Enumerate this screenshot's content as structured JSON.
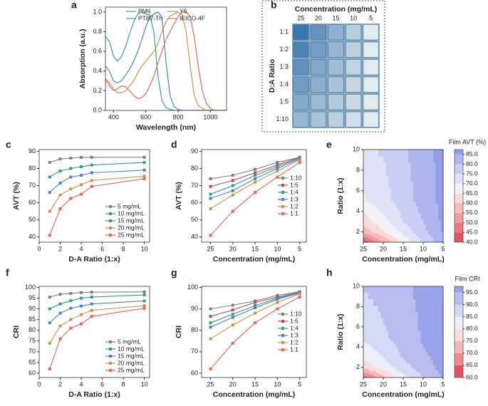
{
  "chart_data": [
    {
      "type": "line",
      "panel_label": "a",
      "xlabel": "Wavelength (nm)",
      "ylabel": "Absorption (a.u.)",
      "x": [
        350,
        375,
        400,
        425,
        450,
        475,
        500,
        525,
        550,
        575,
        600,
        625,
        650,
        675,
        700,
        725,
        750,
        775,
        800,
        825,
        850,
        875,
        900,
        925,
        950,
        975,
        1000,
        1025,
        1050,
        1075,
        1100
      ],
      "series": [
        {
          "name": "PM6",
          "color": "#3aa58f",
          "values": [
            0.75,
            0.7,
            0.55,
            0.5,
            0.55,
            0.65,
            0.78,
            0.9,
            0.98,
            1.0,
            0.98,
            0.97,
            0.8,
            0.35,
            0.1,
            0.03,
            0.01,
            0,
            0,
            0,
            0,
            0,
            0,
            0,
            0,
            0,
            0,
            0,
            0,
            0,
            0
          ]
        },
        {
          "name": "Y6",
          "color": "#c49a4a",
          "values": [
            0.32,
            0.28,
            0.22,
            0.18,
            0.18,
            0.2,
            0.25,
            0.3,
            0.38,
            0.45,
            0.5,
            0.55,
            0.6,
            0.68,
            0.8,
            0.9,
            0.96,
            0.98,
            1.0,
            0.97,
            0.8,
            0.45,
            0.15,
            0.05,
            0.02,
            0,
            0,
            0,
            0,
            0,
            0
          ]
        },
        {
          "name": "PTB7-Th",
          "color": "#4a86d4",
          "values": [
            0.45,
            0.4,
            0.3,
            0.28,
            0.3,
            0.36,
            0.42,
            0.5,
            0.6,
            0.72,
            0.85,
            0.95,
            0.98,
            1.0,
            0.95,
            0.5,
            0.15,
            0.04,
            0.01,
            0,
            0,
            0,
            0,
            0,
            0,
            0,
            0,
            0,
            0,
            0,
            0
          ]
        },
        {
          "name": "IEICO-4F",
          "color": "#f0635c",
          "values": [
            0.32,
            0.25,
            0.2,
            0.22,
            0.25,
            0.24,
            0.2,
            0.15,
            0.12,
            0.13,
            0.17,
            0.25,
            0.35,
            0.48,
            0.6,
            0.72,
            0.8,
            0.88,
            0.95,
            1.0,
            1.0,
            0.95,
            0.75,
            0.45,
            0.2,
            0.07,
            0.02,
            0,
            0,
            0,
            0
          ]
        }
      ],
      "xlim": [
        350,
        1100
      ],
      "xticks": [
        400,
        600,
        800,
        1000
      ],
      "ylim": [
        0,
        1.05
      ],
      "yticks": [
        {
          "value": 0,
          "label": "0.0"
        },
        0.2,
        0.4,
        0.6,
        0.8,
        {
          "value": 1,
          "label": "1.0"
        }
      ],
      "legend": "upper center"
    },
    {
      "type": "photo",
      "panel_label": "b",
      "title": "Concentration (mg/mL)",
      "ylabel": "D:A Ratio",
      "columns": [
        25,
        20,
        15,
        10,
        5
      ],
      "rows": [
        "1:1",
        "1:2",
        "1:3",
        "1:4",
        "1:5",
        "1:10"
      ]
    },
    {
      "type": "line",
      "panel_label": "c",
      "xlabel": "D-A Ratio (1:x)",
      "ylabel": "AVT (%)",
      "marker": "square",
      "x": [
        1,
        2,
        3,
        4,
        5,
        10
      ],
      "series": [
        {
          "name": "5 mg/mL",
          "color": "#7f7f7f",
          "values": [
            83.5,
            85.5,
            86,
            86.5,
            86.5,
            86.5
          ]
        },
        {
          "name": "10 mg/mL",
          "color": "#2e9e8c",
          "values": [
            75,
            78.5,
            80,
            81,
            82,
            83.5
          ]
        },
        {
          "name": "15 mg/mL",
          "color": "#4b7fd6",
          "values": [
            66,
            71.5,
            75,
            76,
            77.5,
            79
          ]
        },
        {
          "name": "20 mg/mL",
          "color": "#c8964a",
          "values": [
            55,
            64.5,
            68,
            70.5,
            73,
            75.5
          ]
        },
        {
          "name": "25 mg/mL",
          "color": "#f0605a",
          "values": [
            41,
            56.5,
            62.5,
            65,
            69.5,
            74
          ]
        }
      ],
      "xlim": [
        0,
        10.5
      ],
      "xticks": [
        0,
        2,
        4,
        6,
        8,
        10
      ],
      "ylim": [
        37,
        91
      ],
      "yticks": [
        40,
        50,
        60,
        70,
        80,
        90
      ],
      "legend": "lower right"
    },
    {
      "type": "line",
      "panel_label": "d",
      "xlabel": "Concentration (mg/mL)",
      "ylabel": "AVT (%)",
      "marker": "square",
      "x": [
        25,
        20,
        15,
        10,
        5
      ],
      "series": [
        {
          "name": "1:10",
          "color": "#7f7f7f",
          "values": [
            74,
            76,
            79.5,
            83.5,
            86.5
          ]
        },
        {
          "name": "1:5",
          "color": "#b5505a",
          "values": [
            69.5,
            73,
            77.5,
            82,
            86.5
          ]
        },
        {
          "name": "1:4",
          "color": "#2e9e8c",
          "values": [
            65,
            70,
            76,
            81,
            86
          ]
        },
        {
          "name": "1:3",
          "color": "#4b7fd6",
          "values": [
            62.5,
            67,
            74,
            80,
            85.5
          ]
        },
        {
          "name": "1:2",
          "color": "#c8964a",
          "values": [
            56.5,
            64.5,
            72,
            78.5,
            85
          ]
        },
        {
          "name": "1:1",
          "color": "#f0605a",
          "values": [
            41,
            55,
            66,
            75,
            83.5
          ]
        }
      ],
      "xlim": [
        27,
        3.5
      ],
      "xticks": [
        25,
        20,
        15,
        10,
        5
      ],
      "ylim": [
        37,
        91
      ],
      "yticks": [
        40,
        50,
        60,
        70,
        80,
        90
      ],
      "legend": "center right"
    },
    {
      "type": "contour",
      "panel_label": "e",
      "xlabel": "Concentration (mg/mL)",
      "ylabel": "Ratio (1:x)",
      "colorbar_title": "Film AVT (%)",
      "x": [
        25,
        20,
        15,
        10,
        5
      ],
      "y": [
        1,
        2,
        3,
        4,
        5,
        10
      ],
      "z": [
        [
          41,
          55,
          66,
          75,
          83.5
        ],
        [
          56.5,
          64.5,
          71.5,
          78.5,
          85.5
        ],
        [
          62.5,
          68,
          75,
          80,
          86
        ],
        [
          65,
          70.5,
          76,
          81,
          86.5
        ],
        [
          69.5,
          73,
          77.5,
          82,
          86.5
        ],
        [
          74,
          75.5,
          79,
          83.5,
          86.5
        ]
      ],
      "xlim": [
        25,
        5
      ],
      "xticks": [
        25,
        20,
        15,
        10,
        5
      ],
      "ylim": [
        1,
        10
      ],
      "yticks": [
        2,
        4,
        6,
        8,
        10
      ],
      "zlim": [
        40,
        87.5
      ],
      "zticks": [
        {
          "value": 40,
          "label": "40.0"
        },
        {
          "value": 45,
          "label": "45.0"
        },
        {
          "value": 50,
          "label": "50.0"
        },
        {
          "value": 55,
          "label": "55.0"
        },
        {
          "value": 60,
          "label": "60.0"
        },
        {
          "value": 65,
          "label": "65.0"
        },
        {
          "value": 70,
          "label": "70.0"
        },
        {
          "value": 75,
          "label": "75.0"
        },
        {
          "value": 80,
          "label": "80.0"
        },
        {
          "value": 85,
          "label": "85.0"
        }
      ],
      "colors": [
        "#e0565c",
        "#eb7a7e",
        "#f29c9e",
        "#f6bcbd",
        "#fad9d9",
        "#f4f1f6",
        "#e0e3f7",
        "#c8cef4",
        "#aeb6ef",
        "#929ee9"
      ]
    },
    {
      "type": "line",
      "panel_label": "f",
      "xlabel": "D-A Ratio (1:x)",
      "ylabel": "CRI",
      "marker": "square",
      "x": [
        1,
        2,
        3,
        4,
        5,
        10
      ],
      "series": [
        {
          "name": "5 mg/mL",
          "color": "#7f7f7f",
          "values": [
            95.5,
            96.8,
            97.2,
            97.6,
            97.8,
            97.9
          ]
        },
        {
          "name": "10 mg/mL",
          "color": "#2e9e8c",
          "values": [
            90,
            92.3,
            93.8,
            95,
            95.5,
            96.5
          ]
        },
        {
          "name": "15 mg/mL",
          "color": "#4b7fd6",
          "values": [
            83.5,
            88,
            90.3,
            91.3,
            92.3,
            93.7
          ]
        },
        {
          "name": "20 mg/mL",
          "color": "#c8964a",
          "values": [
            74,
            82,
            85,
            87.3,
            89.3,
            91.5
          ]
        },
        {
          "name": "25 mg/mL",
          "color": "#f0605a",
          "values": [
            62,
            76,
            81,
            83,
            86.5,
            90.3
          ]
        }
      ],
      "xlim": [
        0,
        10.5
      ],
      "xticks": [
        0,
        2,
        4,
        6,
        8,
        10
      ],
      "ylim": [
        58,
        100.5
      ],
      "yticks": [
        60,
        65,
        70,
        75,
        80,
        85,
        90,
        95,
        100
      ],
      "legend": "lower right"
    },
    {
      "type": "line",
      "panel_label": "g",
      "xlabel": "Concentration (mg/mL)",
      "ylabel": "CRI",
      "marker": "square",
      "x": [
        25,
        20,
        15,
        10,
        5
      ],
      "series": [
        {
          "name": "1:10",
          "color": "#7f7f7f",
          "values": [
            90,
            91.7,
            93.7,
            96.3,
            98
          ]
        },
        {
          "name": "1:5",
          "color": "#b5505a",
          "values": [
            86.5,
            89.5,
            93,
            95.5,
            97.8
          ]
        },
        {
          "name": "1:4",
          "color": "#2e9e8c",
          "values": [
            83.5,
            87.5,
            91.5,
            95,
            97.5
          ]
        },
        {
          "name": "1:3",
          "color": "#4b7fd6",
          "values": [
            81.5,
            86,
            90.5,
            94.5,
            97.3
          ]
        },
        {
          "name": "1:2",
          "color": "#c8964a",
          "values": [
            76,
            82.5,
            88,
            93,
            97
          ]
        },
        {
          "name": "1:1",
          "color": "#f0605a",
          "values": [
            62,
            74,
            83.5,
            90,
            95.5
          ]
        }
      ],
      "xlim": [
        27,
        3.5
      ],
      "xticks": [
        25,
        20,
        15,
        10,
        5
      ],
      "ylim": [
        58,
        100.5
      ],
      "yticks": [
        60,
        70,
        80,
        90,
        100
      ],
      "legend": "center right"
    },
    {
      "type": "contour",
      "panel_label": "h",
      "xlabel": "Concentration (mg/mL)",
      "ylabel": "Ratio (1:x)",
      "colorbar_title": "Film CRI",
      "x": [
        25,
        20,
        15,
        10,
        5
      ],
      "y": [
        1,
        2,
        3,
        4,
        5,
        10
      ],
      "z": [
        [
          62,
          74,
          83.5,
          90,
          95.5
        ],
        [
          76,
          82,
          88,
          92.3,
          96.8
        ],
        [
          81,
          85,
          90.3,
          93.8,
          97.2
        ],
        [
          83,
          87.3,
          91.3,
          95,
          97.6
        ],
        [
          86.5,
          89.3,
          92.3,
          95.5,
          97.8
        ],
        [
          90.3,
          91.5,
          93.7,
          96.5,
          97.9
        ]
      ],
      "xlim": [
        25,
        5
      ],
      "xticks": [
        25,
        20,
        15,
        10,
        5
      ],
      "ylim": [
        1,
        10
      ],
      "yticks": [
        2,
        4,
        6,
        8,
        10
      ],
      "zlim": [
        60,
        97.5
      ],
      "zticks": [
        {
          "value": 60,
          "label": "60.0"
        },
        {
          "value": 65,
          "label": "65.0"
        },
        {
          "value": 70,
          "label": "70.0"
        },
        {
          "value": 75,
          "label": "75.0"
        },
        {
          "value": 80,
          "label": "80.0"
        },
        {
          "value": 85,
          "label": "85.0"
        },
        {
          "value": 90,
          "label": "90.0"
        },
        {
          "value": 95,
          "label": "95.0"
        }
      ],
      "colors": [
        "#e0565c",
        "#ee8c8e",
        "#f5b6b7",
        "#fadcdc",
        "#eeeef9",
        "#d4d9f6",
        "#b6bef1",
        "#98a3ea"
      ]
    }
  ]
}
